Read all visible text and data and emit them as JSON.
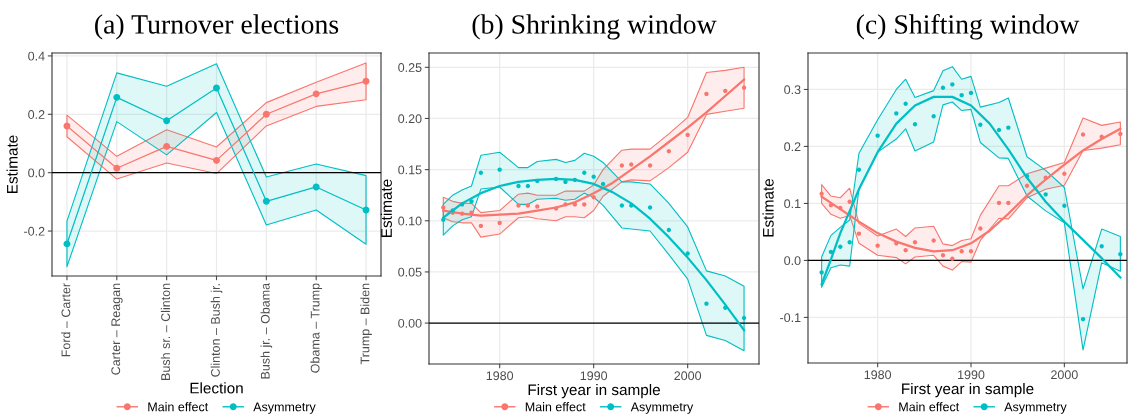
{
  "chart_data": [
    {
      "type": "line",
      "title": "(a) Turnover elections",
      "xlabel": "Election",
      "ylabel": "Estimate",
      "categories": [
        "Ford – Carter",
        "Carter – Reagan",
        "Bush sr. – Clinton",
        "Clinton – Bush jr.",
        "Bush jr. – Obama",
        "Obama – Trump",
        "Trump – Biden"
      ],
      "ylim": [
        -0.354,
        0.41
      ],
      "yticks": [
        {
          "value": -0.2,
          "label": "-0.2"
        },
        {
          "value": 0,
          "label": "0.0"
        },
        {
          "value": 0.2,
          "label": "0.2"
        },
        {
          "value": 0.4,
          "label": "0.4"
        }
      ],
      "grid": true,
      "legend": "bottom",
      "marker": "circle",
      "ref_lines": [
        {
          "axis": "y",
          "value": 0,
          "color": "#000000"
        }
      ],
      "series": [
        {
          "name": "Main effect",
          "color": "#f8766d",
          "values": [
            0.16,
            0.015,
            0.09,
            0.042,
            0.2,
            0.27,
            0.313
          ],
          "lower": [
            0.123,
            -0.022,
            0.033,
            -0.003,
            0.16,
            0.227,
            0.25
          ],
          "upper": [
            0.197,
            0.056,
            0.147,
            0.088,
            0.24,
            0.31,
            0.376
          ]
        },
        {
          "name": "Asymmetry",
          "color": "#00bfc4",
          "values": [
            -0.244,
            0.258,
            0.178,
            0.29,
            -0.098,
            -0.049,
            -0.128
          ],
          "lower": [
            -0.322,
            0.175,
            0.061,
            0.206,
            -0.179,
            -0.128,
            -0.245
          ],
          "upper": [
            -0.166,
            0.342,
            0.296,
            0.373,
            -0.015,
            0.03,
            -0.01
          ]
        }
      ]
    },
    {
      "type": "scatter",
      "title": "(b) Shrinking window",
      "xlabel": "First year in sample",
      "ylabel": "Estimate",
      "xlim": [
        1972.48,
        2007.59
      ],
      "xticks": [
        1980,
        1990,
        2000
      ],
      "ylim": [
        -0.04,
        0.264
      ],
      "yticks": [
        {
          "value": 0,
          "label": "0.00"
        },
        {
          "value": 0.05,
          "label": "0.05"
        },
        {
          "value": 0.1,
          "label": "0.10"
        },
        {
          "value": 0.15,
          "label": "0.15"
        },
        {
          "value": 0.2,
          "label": "0.20"
        },
        {
          "value": 0.25,
          "label": "0.25"
        }
      ],
      "grid": true,
      "legend": "bottom",
      "ref_lines": [
        {
          "axis": "y",
          "value": 0,
          "color": "#000000"
        }
      ],
      "x": [
        1974,
        1975,
        1976,
        1977,
        1978,
        1980,
        1982,
        1983,
        1984,
        1986,
        1987,
        1988,
        1989,
        1990,
        1991,
        1993,
        1994,
        1996,
        1998,
        2000,
        2002,
        2004,
        2006
      ],
      "series": [
        {
          "name": "Main effect",
          "color": "#f8766d",
          "values": [
            0.113,
            0.108,
            0.107,
            0.108,
            0.095,
            0.098,
            0.115,
            0.115,
            0.114,
            0.112,
            0.116,
            0.116,
            0.116,
            0.123,
            null,
            0.154,
            0.155,
            0.154,
            0.168,
            0.184,
            0.224,
            0.227,
            0.23
          ],
          "lower": [
            0.103,
            0.099,
            0.098,
            0.098,
            0.084,
            0.087,
            0.103,
            0.104,
            0.102,
            0.1,
            0.104,
            0.104,
            0.103,
            0.11,
            0.124,
            0.138,
            0.14,
            0.139,
            0.152,
            0.167,
            0.204,
            0.207,
            0.21
          ],
          "upper": [
            0.123,
            0.119,
            0.117,
            0.117,
            0.108,
            0.11,
            0.126,
            0.127,
            0.125,
            0.125,
            0.129,
            0.129,
            0.129,
            0.135,
            0.15,
            0.169,
            0.17,
            0.17,
            0.185,
            0.201,
            0.245,
            0.247,
            0.25
          ]
        },
        {
          "name": "Asymmetry",
          "color": "#00bfc4",
          "values": [
            0.101,
            0.11,
            0.116,
            0.119,
            0.147,
            0.15,
            0.134,
            0.134,
            0.139,
            0.141,
            0.138,
            0.14,
            0.147,
            0.143,
            0.136,
            0.115,
            0.115,
            0.113,
            0.091,
            0.068,
            0.019,
            0.015,
            0.005
          ],
          "lower": [
            0.086,
            0.095,
            0.101,
            0.104,
            0.131,
            0.133,
            0.116,
            0.116,
            0.121,
            0.122,
            0.12,
            0.121,
            0.127,
            0.123,
            0.115,
            0.093,
            0.092,
            0.09,
            0.067,
            0.043,
            -0.012,
            -0.017,
            -0.027
          ],
          "upper": [
            0.116,
            0.125,
            0.13,
            0.134,
            0.164,
            0.167,
            0.152,
            0.152,
            0.158,
            0.16,
            0.157,
            0.159,
            0.166,
            0.163,
            0.157,
            0.138,
            0.138,
            0.136,
            0.117,
            0.094,
            0.051,
            0.046,
            0.036
          ]
        },
        {
          "type": "line",
          "color": "#f8766d",
          "x": [
            1974,
            1976,
            1978,
            1980,
            1982,
            1984,
            1986,
            1988,
            1990,
            1992,
            1994,
            1996,
            1998,
            2000,
            2002,
            2004,
            2006
          ],
          "values": [
            0.11,
            0.107,
            0.105,
            0.106,
            0.107,
            0.11,
            0.113,
            0.118,
            0.127,
            0.137,
            0.15,
            0.163,
            0.177,
            0.191,
            0.206,
            0.222,
            0.238
          ]
        },
        {
          "type": "line",
          "color": "#00bfc4",
          "x": [
            1974,
            1976,
            1978,
            1980,
            1982,
            1984,
            1986,
            1988,
            1990,
            1992,
            1994,
            1996,
            1998,
            2000,
            2002,
            2004,
            2006
          ],
          "values": [
            0.103,
            0.117,
            0.127,
            0.134,
            0.138,
            0.14,
            0.141,
            0.14,
            0.136,
            0.128,
            0.117,
            0.102,
            0.084,
            0.064,
            0.042,
            0.018,
            -0.007
          ]
        }
      ]
    },
    {
      "type": "scatter",
      "title": "(c) Shifting window",
      "xlabel": "First year in sample",
      "ylabel": "Estimate",
      "xlim": [
        1972.54,
        2006.71
      ],
      "xticks": [
        1980,
        1990,
        2000
      ],
      "ylim": [
        -0.18,
        0.364
      ],
      "yticks": [
        {
          "value": -0.1,
          "label": "-0.1"
        },
        {
          "value": 0,
          "label": "0.0"
        },
        {
          "value": 0.1,
          "label": "0.1"
        },
        {
          "value": 0.2,
          "label": "0.2"
        },
        {
          "value": 0.3,
          "label": "0.3"
        }
      ],
      "grid": true,
      "legend": "bottom",
      "ref_lines": [
        {
          "axis": "y",
          "value": 0,
          "color": "#000000"
        }
      ],
      "x": [
        1974,
        1975,
        1976,
        1977,
        1978,
        1980,
        1982,
        1983,
        1984,
        1986,
        1987,
        1988,
        1989,
        1990,
        1991,
        1993,
        1994,
        1996,
        1998,
        2000,
        2002,
        2004,
        2006
      ],
      "series": [
        {
          "name": "Main effect",
          "color": "#f8766d",
          "values": [
            0.117,
            0.097,
            0.092,
            0.103,
            0.047,
            0.026,
            0.03,
            0.018,
            0.032,
            0.035,
            0.009,
            0.003,
            0.016,
            0.016,
            0.056,
            0.101,
            0.101,
            0.131,
            0.145,
            0.152,
            0.221,
            0.217,
            0.222
          ],
          "lower": [
            0.1,
            0.081,
            0.074,
            0.079,
            0.03,
            0.009,
            0.005,
            -0.006,
            0.006,
            0.009,
            -0.01,
            -0.017,
            -0.002,
            -0.003,
            0.035,
            0.074,
            0.073,
            0.11,
            0.125,
            0.132,
            0.193,
            0.197,
            0.203
          ],
          "upper": [
            0.133,
            0.113,
            0.11,
            0.127,
            0.065,
            0.043,
            0.055,
            0.042,
            0.057,
            0.06,
            0.029,
            0.026,
            0.035,
            0.038,
            0.079,
            0.131,
            0.131,
            0.152,
            0.162,
            0.172,
            0.25,
            0.237,
            0.243
          ]
        },
        {
          "name": "Asymmetry",
          "color": "#00bfc4",
          "values": [
            -0.021,
            0.015,
            0.024,
            0.032,
            0.159,
            0.219,
            0.258,
            0.275,
            0.239,
            0.253,
            0.303,
            0.309,
            0.29,
            0.294,
            0.238,
            0.229,
            0.233,
            0.148,
            0.116,
            0.096,
            -0.103,
            0.025,
            0.011
          ],
          "lower": [
            -0.047,
            -0.013,
            -0.008,
            -0.01,
            0.126,
            0.19,
            0.213,
            0.231,
            0.192,
            0.208,
            0.273,
            0.278,
            0.263,
            0.265,
            0.207,
            0.18,
            0.179,
            0.113,
            0.087,
            0.066,
            -0.157,
            -0.004,
            -0.019
          ],
          "upper": [
            0.006,
            0.044,
            0.058,
            0.071,
            0.188,
            0.247,
            0.3,
            0.318,
            0.286,
            0.298,
            0.333,
            0.34,
            0.318,
            0.323,
            0.269,
            0.277,
            0.285,
            0.182,
            0.158,
            0.128,
            -0.05,
            0.055,
            0.042
          ]
        },
        {
          "type": "line",
          "color": "#f8766d",
          "x": [
            1974,
            1976,
            1978,
            1980,
            1982,
            1984,
            1986,
            1988,
            1990,
            1992,
            1994,
            1996,
            1998,
            2000,
            2002,
            2004,
            2006
          ],
          "values": [
            0.112,
            0.09,
            0.068,
            0.048,
            0.033,
            0.022,
            0.016,
            0.018,
            0.03,
            0.052,
            0.082,
            0.114,
            0.142,
            0.168,
            0.193,
            0.213,
            0.231
          ]
        },
        {
          "type": "line",
          "color": "#00bfc4",
          "x": [
            1974,
            1975,
            1976,
            1978,
            1980,
            1982,
            1984,
            1986,
            1988,
            1990,
            1992,
            1994,
            1996,
            1998,
            2000,
            2002,
            2004,
            2006
          ],
          "values": [
            -0.042,
            0.002,
            0.048,
            0.125,
            0.19,
            0.24,
            0.272,
            0.287,
            0.287,
            0.272,
            0.24,
            0.195,
            0.145,
            0.103,
            0.068,
            0.036,
            0.004,
            -0.03
          ]
        }
      ]
    }
  ]
}
